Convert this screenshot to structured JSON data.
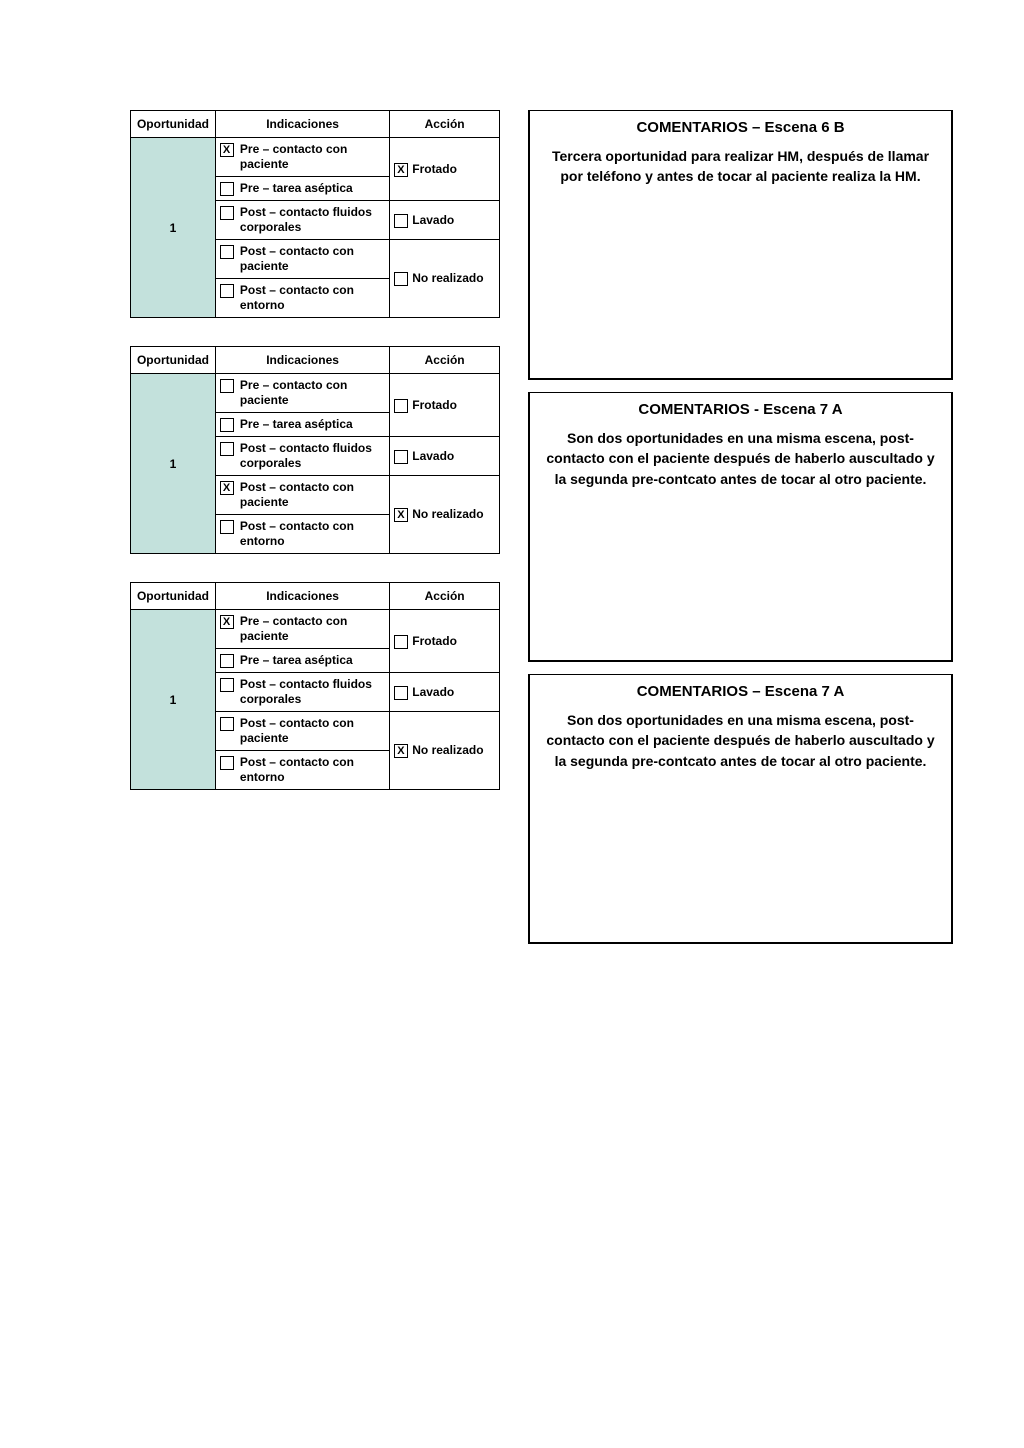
{
  "columns": {
    "oportunidad": "Oportunidad",
    "indicaciones": "Indicaciones",
    "accion": "Acción"
  },
  "indication_labels": {
    "pre_contacto_paciente": "Pre – contacto con paciente",
    "pre_tarea_aseptica": "Pre – tarea aséptica",
    "post_fluidos": "Post – contacto fluidos corporales",
    "post_paciente": "Post – contacto con paciente",
    "post_entorno": "Post – contacto con entorno"
  },
  "action_labels": {
    "frotado": "Frotado",
    "lavado": "Lavado",
    "no_realizado": "No realizado"
  },
  "colors": {
    "mint": "#c3e1dc",
    "border": "#000000",
    "background": "#ffffff"
  },
  "blocks": [
    {
      "opp_number": "1",
      "indications": {
        "pre_contacto_paciente": true,
        "pre_tarea_aseptica": false,
        "post_fluidos": false,
        "post_paciente": false,
        "post_entorno": false
      },
      "actions": {
        "frotado": true,
        "lavado": false,
        "no_realizado": false
      },
      "comment_title": "COMENTARIOS – Escena 6 B",
      "comment_body": "Tercera oportunidad para realizar HM, después de llamar por teléfono y antes de tocar al paciente realiza la HM."
    },
    {
      "opp_number": "1",
      "indications": {
        "pre_contacto_paciente": false,
        "pre_tarea_aseptica": false,
        "post_fluidos": false,
        "post_paciente": true,
        "post_entorno": false
      },
      "actions": {
        "frotado": false,
        "lavado": false,
        "no_realizado": true
      },
      "comment_title": "COMENTARIOS - Escena 7 A",
      "comment_body": "Son dos oportunidades en una misma escena, post-contacto con el paciente después de haberlo auscultado y la segunda pre-contcato antes de tocar al otro paciente."
    },
    {
      "opp_number": "1",
      "indications": {
        "pre_contacto_paciente": true,
        "pre_tarea_aseptica": false,
        "post_fluidos": false,
        "post_paciente": false,
        "post_entorno": false
      },
      "actions": {
        "frotado": false,
        "lavado": false,
        "no_realizado": true
      },
      "comment_title": "COMENTARIOS – Escena 7 A",
      "comment_body": "Son dos oportunidades en una misma escena, post-contacto con el paciente después de haberlo auscultado y la segunda pre-contcato antes de tocar al otro paciente."
    }
  ]
}
